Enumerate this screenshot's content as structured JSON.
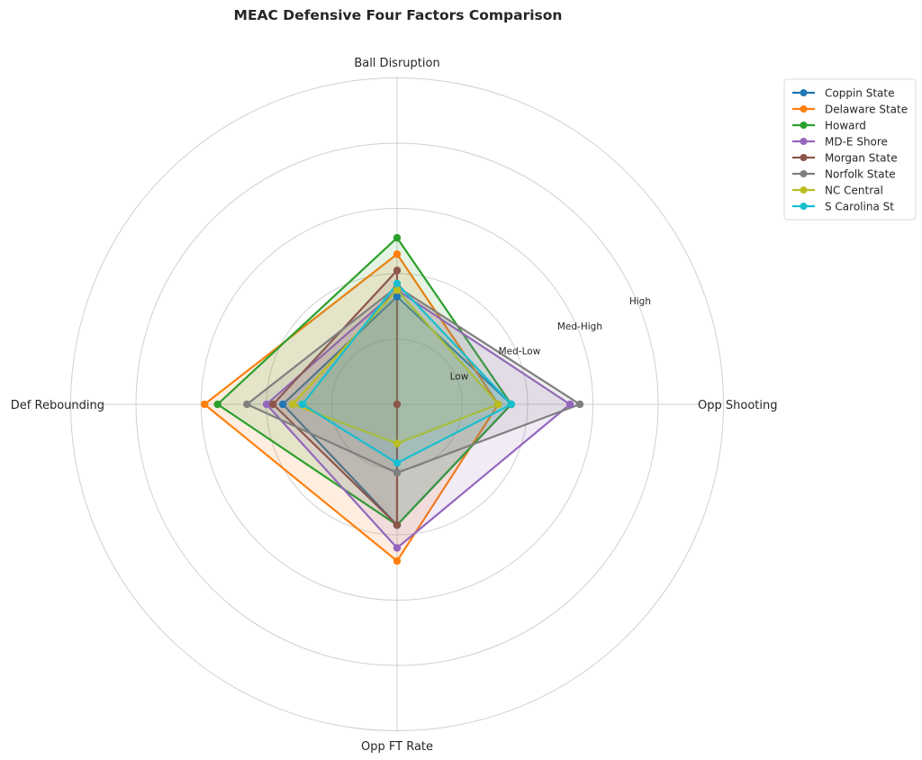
{
  "chart_data": {
    "type": "radar",
    "title": "MEAC Defensive Four Factors Comparison",
    "axes": [
      "Ball Disruption",
      "Opp Shooting",
      "Opp FT Rate",
      "Def Rebounding"
    ],
    "rings": [
      {
        "level": 1,
        "label": "Low"
      },
      {
        "level": 2,
        "label": "Med-Low"
      },
      {
        "level": 3,
        "label": "Med-High"
      },
      {
        "level": 4,
        "label": "High"
      },
      {
        "level": 5,
        "label": ""
      }
    ],
    "rlim": [
      0,
      5
    ],
    "grid": true,
    "legend_position": "top-right",
    "series": [
      {
        "name": "Coppin State",
        "color": "#1f77b4",
        "values": [
          1.65,
          1.75,
          1.85,
          1.75
        ]
      },
      {
        "name": "Delaware State",
        "color": "#ff7f0e",
        "values": [
          2.3,
          1.55,
          2.4,
          2.95
        ]
      },
      {
        "name": "Howard",
        "color": "#2ca02c",
        "values": [
          2.55,
          1.75,
          1.85,
          2.75
        ]
      },
      {
        "name": "MD-E Shore",
        "color": "#9467bd",
        "values": [
          1.75,
          2.65,
          2.2,
          2.0
        ]
      },
      {
        "name": "Morgan State",
        "color": "#8c564b",
        "values": [
          2.05,
          0.0,
          1.85,
          1.9
        ]
      },
      {
        "name": "Norfolk State",
        "color": "#7f7f7f",
        "values": [
          1.8,
          2.8,
          1.05,
          2.3
        ]
      },
      {
        "name": "NC Central",
        "color": "#bcbd22",
        "values": [
          1.75,
          1.55,
          0.6,
          1.6
        ]
      },
      {
        "name": "S Carolina St",
        "color": "#17becf",
        "values": [
          1.85,
          1.75,
          0.9,
          1.45
        ]
      }
    ]
  }
}
